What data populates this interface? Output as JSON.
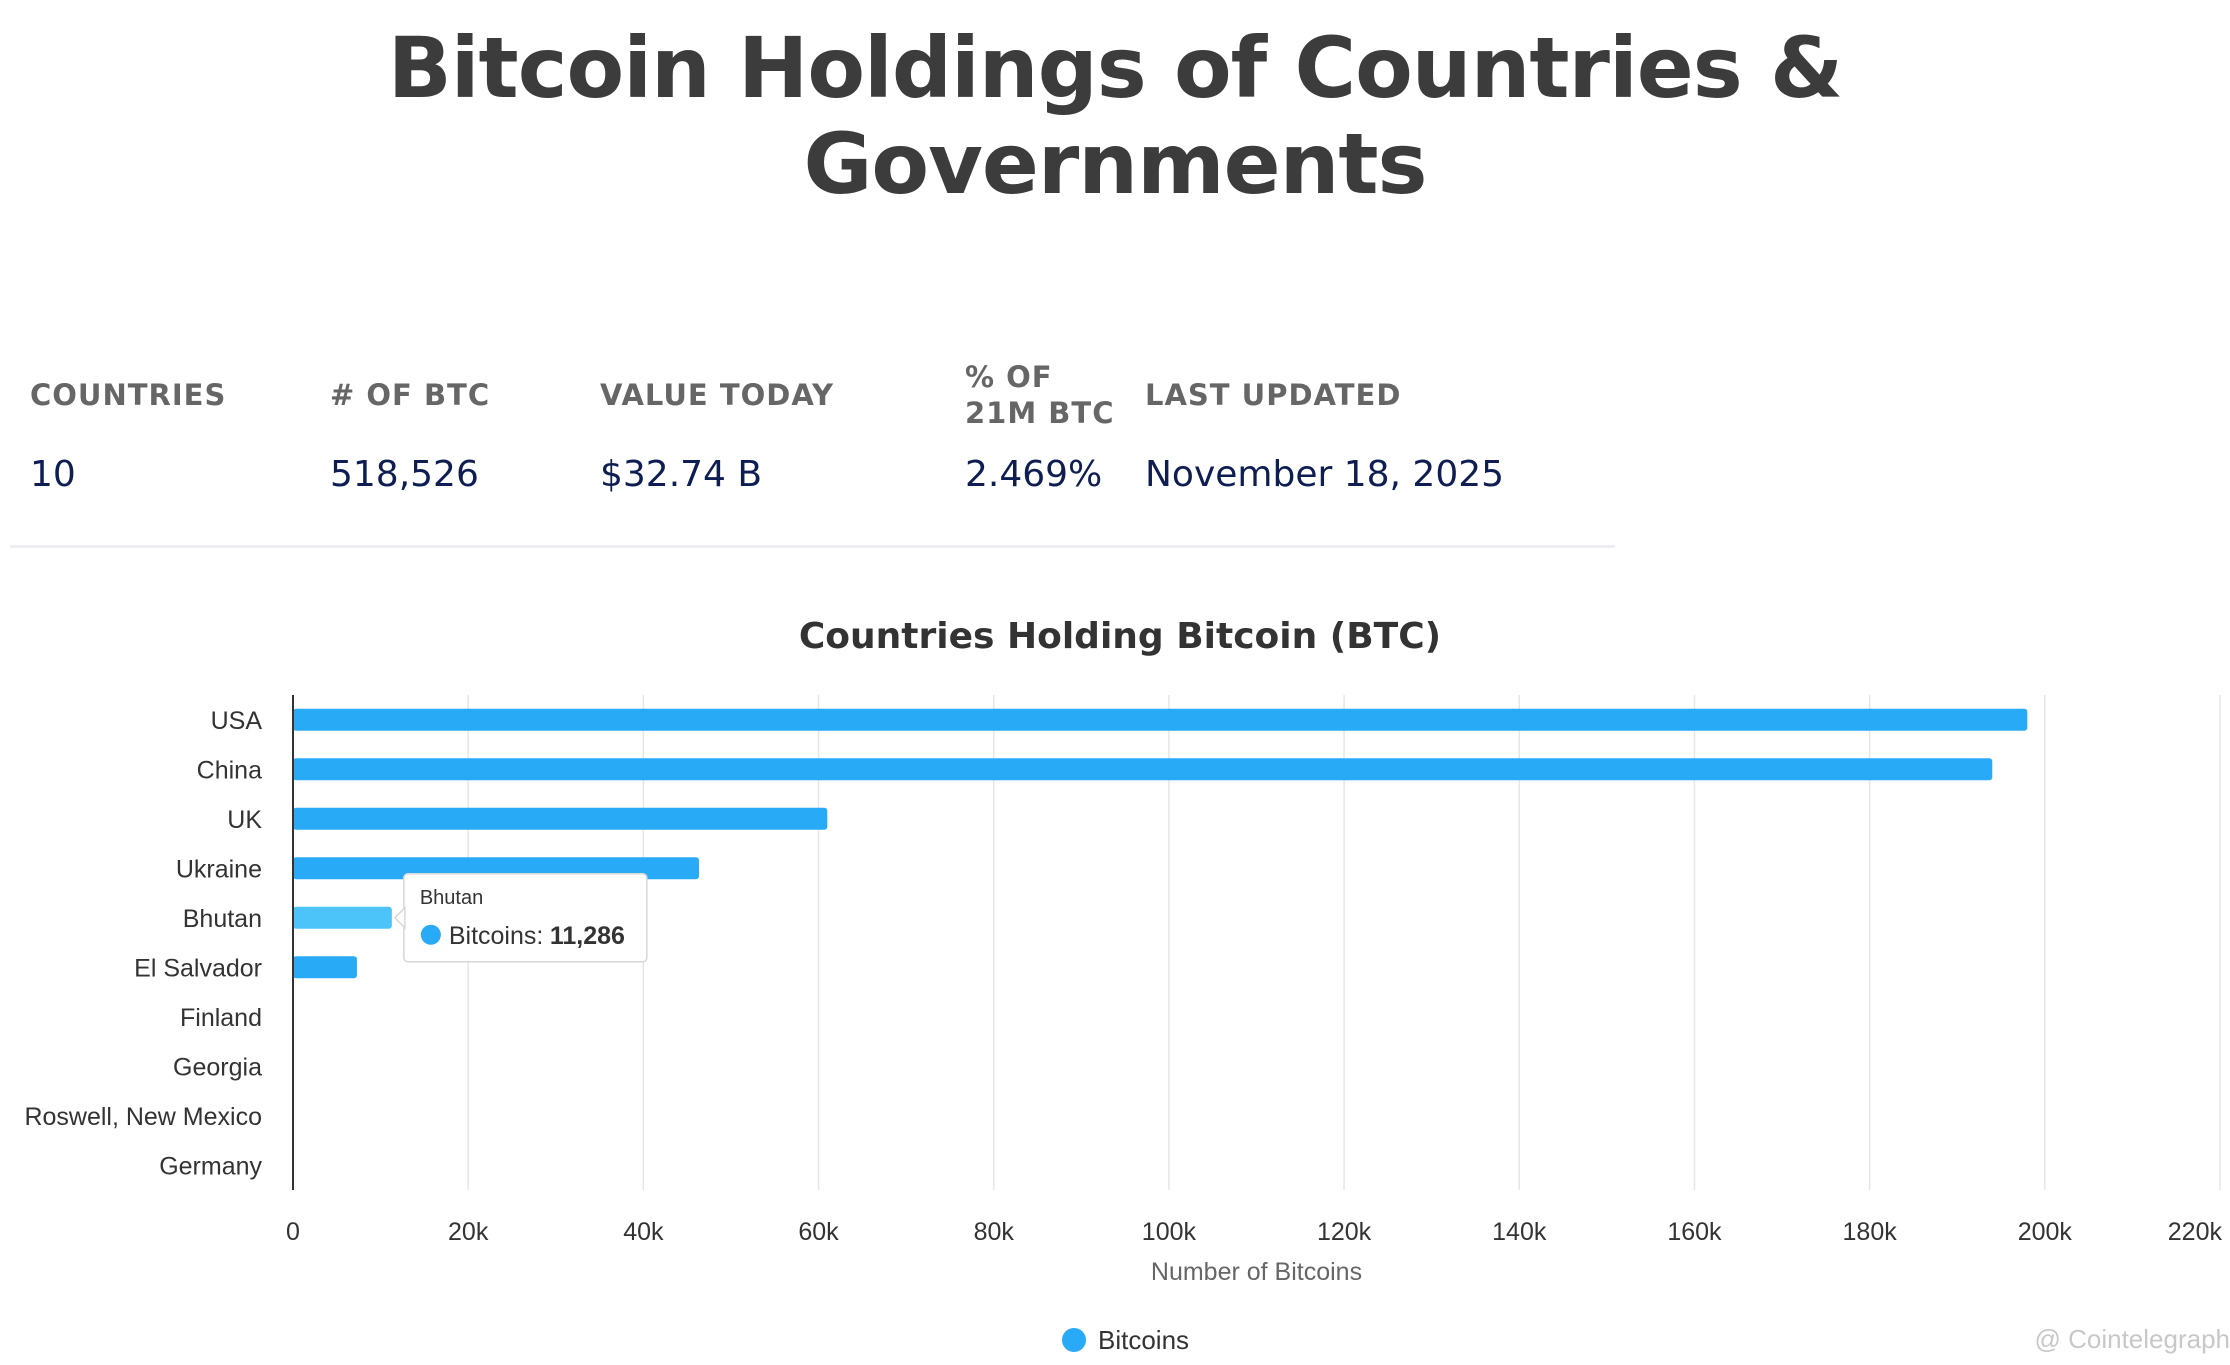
{
  "page": {
    "title_line1": "Bitcoin Holdings of Countries &",
    "title_line2": "Governments"
  },
  "stats": {
    "countries": {
      "label": "COUNTRIES",
      "value": "10"
    },
    "btc": {
      "label": "# OF BTC",
      "value": "518,526"
    },
    "value_today": {
      "label": "VALUE TODAY",
      "value": "$32.74 B"
    },
    "percent": {
      "label": "% OF 21M BTC",
      "value": "2.469%"
    },
    "last_updated": {
      "label": "LAST UPDATED",
      "value": "November 18, 2025"
    }
  },
  "chart_data": {
    "type": "bar",
    "orientation": "horizontal",
    "title": "Countries Holding Bitcoin (BTC)",
    "xlabel": "Number of Bitcoins",
    "ylabel": "",
    "categories": [
      "USA",
      "China",
      "UK",
      "Ukraine",
      "Bhutan",
      "El Salvador",
      "Finland",
      "Georgia",
      "Roswell, New Mexico",
      "Germany"
    ],
    "series": [
      {
        "name": "Bitcoins",
        "values": [
          198000,
          194000,
          61000,
          46351,
          11286,
          7300,
          90,
          66,
          0,
          0
        ]
      }
    ],
    "xlim": [
      0,
      220000
    ],
    "ticks": [
      0,
      20000,
      40000,
      60000,
      80000,
      100000,
      120000,
      140000,
      160000,
      180000,
      200000,
      220000
    ],
    "tick_labels": [
      "0",
      "20k",
      "40k",
      "60k",
      "80k",
      "100k",
      "120k",
      "140k",
      "160k",
      "180k",
      "200k",
      "220k"
    ],
    "grid": true,
    "legend": "bottom-center",
    "highlighted_category": "Bhutan",
    "tooltip": {
      "title": "Bhutan",
      "series_label": "Bitcoins: ",
      "value_text": "11,286"
    },
    "colors": {
      "bar": "#29aaf7",
      "bar_highlight": "#4cc4fa"
    }
  },
  "watermark": "@ Cointelegraph"
}
